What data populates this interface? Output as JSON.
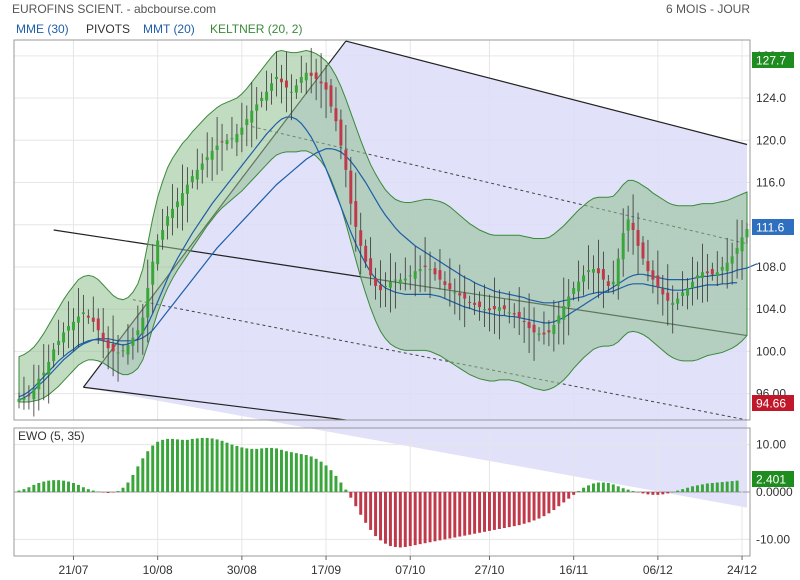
{
  "header": {
    "title": "EUROFINS SCIENT. - abcbourse.com",
    "period": "6 MOIS - JOUR"
  },
  "legend": [
    {
      "label": "MME (30)",
      "color": "#1f5fa8"
    },
    {
      "label": "PIVOTS",
      "color": "#333333"
    },
    {
      "label": "MMT (20)",
      "color": "#1f5fa8"
    },
    {
      "label": "KELTNER (20, 2)",
      "color": "#3a8a3a"
    }
  ],
  "badges": {
    "upper": "127.7",
    "last": "111.6",
    "lower": "94.66",
    "ewo_last": "2.401"
  },
  "colors": {
    "up": "#3aa53a",
    "down": "#c0394a",
    "keltner_fill": "#8fbf8f",
    "channel_fill": "#dcdcf8",
    "mme": "#1f5fa8",
    "badge_green": "#1e8c1e",
    "badge_blue": "#2e6fbf",
    "badge_red": "#c0182a"
  },
  "chart_data": [
    {
      "type": "candlestick",
      "title": "EUROFINS SCIENT.",
      "period": "6 MOIS - JOUR",
      "x_tick_labels": [
        "21/07",
        "10/08",
        "30/08",
        "17/09",
        "07/10",
        "27/10",
        "16/11",
        "06/12",
        "24/12"
      ],
      "y_tick_labels": [
        "96.00",
        "100.0",
        "104.0",
        "108.0",
        "112.0",
        "116.0",
        "120.0",
        "124.0",
        "128.0"
      ],
      "ylim": [
        93.5,
        129.5
      ],
      "last_close": 111.6,
      "close": [
        95.5,
        95.6,
        95.8,
        96.4,
        97.4,
        98.0,
        99.0,
        100.2,
        101.0,
        101.8,
        102.4,
        102.8,
        103.3,
        103.7,
        103.2,
        102.8,
        102.0,
        101.0,
        100.3,
        100.0,
        99.9,
        100.1,
        100.6,
        101.3,
        102.0,
        103.2,
        106.0,
        108.5,
        110.5,
        111.5,
        112.8,
        113.5,
        114.2,
        115.0,
        115.8,
        116.6,
        117.2,
        117.8,
        118.4,
        119.0,
        119.5,
        119.8,
        120.0,
        120.2,
        120.6,
        121.2,
        122.0,
        122.8,
        123.4,
        124.0,
        124.6,
        125.4,
        126.0,
        125.5,
        125.0,
        124.6,
        125.2,
        126.0,
        126.4,
        126.1,
        125.8,
        125.4,
        124.8,
        123.2,
        121.8,
        119.5,
        117.2,
        114.0,
        111.8,
        110.0,
        108.5,
        107.2,
        106.2,
        105.8,
        106.2,
        106.6,
        106.8,
        106.8,
        106.9,
        107.2,
        107.6,
        107.8,
        108.0,
        107.8,
        107.3,
        106.8,
        106.3,
        105.9,
        105.6,
        105.3,
        105.0,
        104.6,
        104.4,
        104.2,
        104.0,
        103.9,
        104.0,
        104.2,
        104.0,
        103.7,
        103.5,
        103.2,
        102.8,
        102.2,
        101.8,
        101.7,
        101.6,
        101.8,
        102.5,
        103.4,
        104.3,
        105.2,
        106.0,
        106.6,
        107.2,
        107.7,
        107.8,
        107.4,
        106.8,
        106.2,
        106.6,
        108.8,
        111.2,
        112.5,
        111.5,
        110.0,
        108.8,
        107.6,
        106.8,
        106.1,
        105.4,
        104.8,
        104.6,
        105.0,
        105.6,
        106.0,
        106.6,
        107.2,
        107.5,
        107.4,
        107.3,
        107.5,
        108.0,
        108.4,
        109.0,
        109.8,
        110.8,
        111.6
      ],
      "keltner_upper": [
        99.5,
        99.7,
        100.0,
        100.4,
        101.0,
        101.7,
        102.5,
        103.3,
        104.1,
        104.9,
        105.6,
        106.2,
        106.8,
        107.1,
        107.2,
        107.1,
        106.8,
        106.3,
        105.8,
        105.3,
        105.0,
        104.9,
        105.1,
        105.6,
        106.4,
        107.8,
        110.2,
        112.6,
        114.6,
        116.1,
        117.4,
        118.3,
        119.0,
        119.7,
        120.2,
        120.8,
        121.3,
        121.8,
        122.3,
        122.7,
        123.1,
        123.4,
        123.6,
        123.8,
        124.0,
        124.4,
        124.9,
        125.5,
        126.1,
        126.7,
        127.3,
        127.9,
        128.4,
        128.5,
        128.4,
        128.3,
        128.3,
        128.4,
        128.5,
        128.4,
        128.2,
        127.9,
        127.5,
        126.9,
        126.1,
        125.1,
        123.9,
        122.6,
        121.3,
        120.0,
        118.8,
        117.7,
        116.8,
        116.0,
        115.3,
        114.8,
        114.4,
        114.2,
        114.1,
        114.1,
        114.2,
        114.3,
        114.4,
        114.4,
        114.3,
        114.2,
        114.0,
        113.7,
        113.3,
        112.9,
        112.5,
        112.1,
        111.8,
        111.5,
        111.3,
        111.1,
        111.0,
        111.0,
        111.0,
        111.0,
        111.0,
        111.0,
        110.9,
        110.8,
        110.7,
        110.7,
        110.7,
        110.8,
        111.1,
        111.5,
        111.9,
        112.4,
        112.9,
        113.4,
        113.8,
        114.2,
        114.5,
        114.6,
        114.6,
        114.6,
        114.7,
        115.2,
        115.8,
        116.2,
        116.2,
        116.0,
        115.7,
        115.4,
        115.0,
        114.7,
        114.4,
        114.1,
        113.9,
        113.8,
        113.8,
        113.8,
        113.8,
        113.9,
        114.0,
        114.0,
        114.0,
        114.1,
        114.2,
        114.3,
        114.5,
        114.7,
        114.9,
        115.1
      ],
      "keltner_lower": [
        95.2,
        95.2,
        95.2,
        95.3,
        95.4,
        95.6,
        95.9,
        96.3,
        96.7,
        97.2,
        97.7,
        98.2,
        98.7,
        99.0,
        99.2,
        99.2,
        99.1,
        98.9,
        98.6,
        98.3,
        98.0,
        97.8,
        97.8,
        98.0,
        98.4,
        99.2,
        100.6,
        102.2,
        103.7,
        104.9,
        106.0,
        106.9,
        107.7,
        108.4,
        109.1,
        109.8,
        110.5,
        111.2,
        111.9,
        112.5,
        113.1,
        113.6,
        114.0,
        114.4,
        114.8,
        115.2,
        115.7,
        116.2,
        116.7,
        117.2,
        117.7,
        118.2,
        118.6,
        118.8,
        118.9,
        118.9,
        118.9,
        119.0,
        119.0,
        118.8,
        118.5,
        118.0,
        117.3,
        116.3,
        115.1,
        113.7,
        112.1,
        110.4,
        108.7,
        107.0,
        105.5,
        104.1,
        102.9,
        101.9,
        101.2,
        100.7,
        100.4,
        100.2,
        100.1,
        100.1,
        100.1,
        100.1,
        100.1,
        100.0,
        99.8,
        99.6,
        99.3,
        99.0,
        98.7,
        98.4,
        98.1,
        97.8,
        97.6,
        97.4,
        97.3,
        97.2,
        97.2,
        97.3,
        97.3,
        97.3,
        97.2,
        97.1,
        96.9,
        96.7,
        96.5,
        96.4,
        96.3,
        96.4,
        96.6,
        96.9,
        97.3,
        97.8,
        98.4,
        98.9,
        99.4,
        99.8,
        100.2,
        100.4,
        100.5,
        100.5,
        100.6,
        100.9,
        101.4,
        101.8,
        101.9,
        101.8,
        101.6,
        101.3,
        100.9,
        100.5,
        100.1,
        99.7,
        99.4,
        99.2,
        99.1,
        99.1,
        99.1,
        99.2,
        99.4,
        99.6,
        99.7,
        99.8,
        99.9,
        100.1,
        100.3,
        100.6,
        101.0,
        101.5
      ],
      "mme": [
        95.4,
        95.6,
        95.9,
        96.3,
        96.8,
        97.2,
        97.7,
        98.2,
        98.7,
        99.2,
        99.6,
        100.0,
        100.4,
        100.7,
        100.9,
        101.1,
        101.2,
        101.2,
        101.2,
        101.1,
        101.0,
        101.0,
        101.0,
        101.0,
        101.1,
        101.3,
        101.6,
        102.0,
        102.6,
        103.2,
        103.8,
        104.4,
        105.0,
        105.6,
        106.2,
        106.8,
        107.4,
        108.0,
        108.6,
        109.2,
        109.8,
        110.3,
        110.8,
        111.3,
        111.8,
        112.3,
        112.8,
        113.3,
        113.8,
        114.3,
        114.8,
        115.3,
        115.8,
        116.2,
        116.6,
        117.0,
        117.4,
        117.8,
        118.2,
        118.5,
        118.8,
        119.0,
        119.2,
        119.2,
        119.1,
        118.9,
        118.5,
        118.0,
        117.4,
        116.7,
        116.0,
        115.2,
        114.4,
        113.6,
        112.9,
        112.3,
        111.7,
        111.2,
        110.8,
        110.4,
        110.0,
        109.7,
        109.4,
        109.1,
        108.8,
        108.5,
        108.2,
        107.9,
        107.6,
        107.3,
        107.0,
        106.8,
        106.5,
        106.3,
        106.1,
        105.9,
        105.7,
        105.6,
        105.5,
        105.4,
        105.3,
        105.2,
        105.1,
        104.9,
        104.8,
        104.7,
        104.6,
        104.6,
        104.6,
        104.7,
        104.8,
        104.9,
        105.0,
        105.1,
        105.2,
        105.4,
        105.5,
        105.6,
        105.6,
        105.6,
        105.7,
        105.9,
        106.1,
        106.3,
        106.4,
        106.4,
        106.4,
        106.3,
        106.2,
        106.1,
        106.0,
        105.9,
        105.8,
        105.8,
        105.8,
        105.9,
        106.0,
        106.1,
        106.2,
        106.3,
        106.3,
        106.3,
        106.4,
        106.4,
        106.5,
        106.5
      ],
      "mmt": [
        95.7,
        95.9,
        96.2,
        96.6,
        97.1,
        97.6,
        98.1,
        98.6,
        99.1,
        99.5,
        99.9,
        100.2,
        100.6,
        100.8,
        101.0,
        101.1,
        101.1,
        101.0,
        100.9,
        100.8,
        100.7,
        100.6,
        100.7,
        100.9,
        101.2,
        101.8,
        102.6,
        103.6,
        104.7,
        105.8,
        106.9,
        107.9,
        108.8,
        109.6,
        110.4,
        111.2,
        111.9,
        112.6,
        113.3,
        114.0,
        114.6,
        115.2,
        115.8,
        116.4,
        117.0,
        117.6,
        118.2,
        118.8,
        119.4,
        120.0,
        120.6,
        121.1,
        121.6,
        122.0,
        122.2,
        122.2,
        122.0,
        121.6,
        121.0,
        120.3,
        119.4,
        118.4,
        117.3,
        116.1,
        114.9,
        113.7,
        112.5,
        111.3,
        110.2,
        109.2,
        108.3,
        107.5,
        106.9,
        106.4,
        106.0,
        105.8,
        105.6,
        105.5,
        105.4,
        105.4,
        105.4,
        105.4,
        105.4,
        105.4,
        105.3,
        105.2,
        105.0,
        104.8,
        104.6,
        104.4,
        104.2,
        104.1,
        103.9,
        103.8,
        103.7,
        103.6,
        103.5,
        103.4,
        103.4,
        103.3,
        103.3,
        103.2,
        103.1,
        103.0,
        102.9,
        102.8,
        102.7,
        102.7,
        102.8,
        103.0,
        103.2,
        103.5,
        103.8,
        104.1,
        104.4,
        104.7,
        105.0,
        105.3,
        105.6,
        105.8,
        106.1,
        106.4,
        106.7,
        107.0,
        107.2,
        107.3,
        107.3,
        107.2,
        107.1,
        107.0,
        106.9,
        106.8,
        106.8,
        106.8,
        106.8,
        106.8,
        106.9,
        107.0,
        107.1,
        107.1,
        107.2,
        107.2,
        107.3,
        107.4,
        107.5,
        107.7,
        107.8,
        107.9,
        108.1,
        108.3
      ]
    },
    {
      "type": "bar",
      "title": "EWO (5, 35)",
      "x_tick_labels": [
        "21/07",
        "10/08",
        "30/08",
        "17/09",
        "07/10",
        "27/10",
        "16/11",
        "06/12",
        "24/12"
      ],
      "y_tick_labels": [
        "10.00",
        "0.0000",
        "-10.00"
      ],
      "ylim": [
        -13.5,
        13.5
      ],
      "last_value": 2.401,
      "values": [
        0.3,
        0.6,
        1.0,
        1.5,
        1.9,
        2.2,
        2.4,
        2.5,
        2.5,
        2.4,
        2.2,
        1.9,
        1.5,
        1.0,
        0.6,
        0.3,
        0.1,
        -0.1,
        -0.2,
        -0.1,
        0.2,
        0.9,
        2.0,
        3.6,
        5.4,
        7.1,
        8.6,
        9.8,
        10.6,
        11.0,
        11.2,
        11.2,
        11.1,
        11.0,
        11.0,
        11.2,
        11.3,
        11.4,
        11.4,
        11.3,
        11.1,
        10.8,
        10.4,
        10.0,
        9.7,
        9.4,
        9.2,
        9.1,
        9.1,
        9.2,
        9.3,
        9.3,
        9.2,
        8.9,
        8.6,
        8.4,
        8.2,
        8.0,
        7.8,
        7.5,
        7.0,
        6.4,
        5.6,
        4.6,
        3.4,
        2.0,
        0.5,
        -1.2,
        -3.0,
        -4.8,
        -6.5,
        -8.0,
        -9.3,
        -10.2,
        -10.9,
        -11.4,
        -11.6,
        -11.7,
        -11.6,
        -11.4,
        -11.2,
        -11.0,
        -10.8,
        -10.6,
        -10.4,
        -10.2,
        -10.0,
        -9.8,
        -9.6,
        -9.4,
        -9.2,
        -9.0,
        -8.8,
        -8.6,
        -8.4,
        -8.2,
        -8.0,
        -7.8,
        -7.6,
        -7.4,
        -7.2,
        -7.0,
        -6.7,
        -6.4,
        -6.0,
        -5.6,
        -5.1,
        -4.5,
        -3.8,
        -3.0,
        -2.2,
        -1.4,
        -0.6,
        0.2,
        0.9,
        1.4,
        1.8,
        2.0,
        2.0,
        1.9,
        1.6,
        1.2,
        0.8,
        0.5,
        0.2,
        -0.1,
        -0.3,
        -0.5,
        -0.6,
        -0.6,
        -0.5,
        -0.3,
        0.0,
        0.3,
        0.6,
        0.9,
        1.2,
        1.4,
        1.6,
        1.8,
        1.9,
        2.0,
        2.1,
        2.2,
        2.3,
        2.4
      ]
    }
  ]
}
